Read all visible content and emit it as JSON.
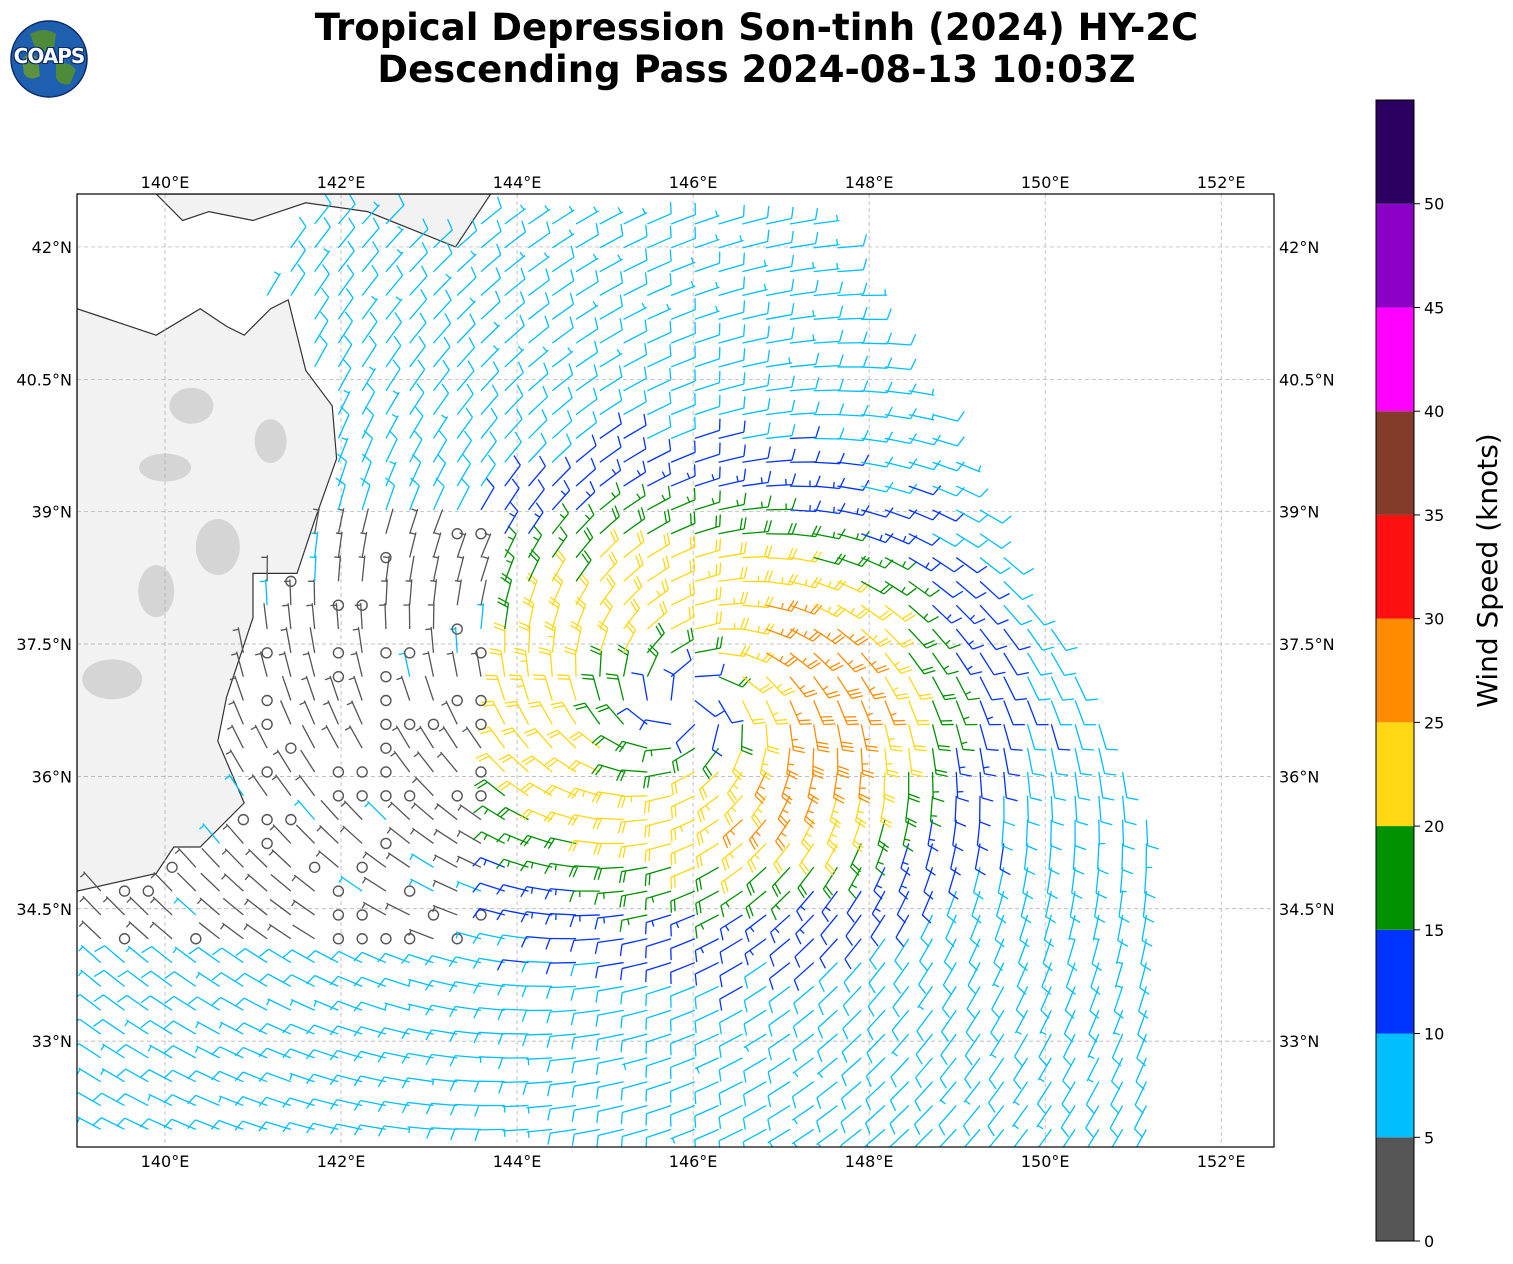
{
  "header": {
    "title_line1": "Tropical Depression Son-tinh (2024) HY-2C",
    "title_line2": "Descending Pass 2024-08-13 10:03Z",
    "logo_text": "COAPS"
  },
  "map": {
    "lon_range": [
      139,
      152.6
    ],
    "lat_range": [
      31.8,
      42.6
    ],
    "lon_ticks": [
      "140°E",
      "142°E",
      "144°E",
      "146°E",
      "148°E",
      "150°E",
      "152°E"
    ],
    "lat_ticks": [
      "42°N",
      "40.5°N",
      "39°N",
      "37.5°N",
      "36°N",
      "34.5°N",
      "33°N"
    ],
    "storm_center": {
      "lon": 145.9,
      "lat": 36.8
    }
  },
  "colorbar": {
    "label": "Wind Speed (knots)",
    "tick_labels": [
      "0",
      "5",
      "10",
      "15",
      "20",
      "25",
      "30",
      "35",
      "40",
      "45",
      "50"
    ],
    "bins": [
      {
        "min": 0,
        "max": 5,
        "color": "#555555"
      },
      {
        "min": 5,
        "max": 10,
        "color": "#00bfff"
      },
      {
        "min": 10,
        "max": 15,
        "color": "#0033ff"
      },
      {
        "min": 15,
        "max": 20,
        "color": "#009100"
      },
      {
        "min": 20,
        "max": 25,
        "color": "#ffd712"
      },
      {
        "min": 25,
        "max": 30,
        "color": "#ff8c00"
      },
      {
        "min": 30,
        "max": 35,
        "color": "#ff1010"
      },
      {
        "min": 35,
        "max": 40,
        "color": "#833c2a"
      },
      {
        "min": 40,
        "max": 45,
        "color": "#ff00ff"
      },
      {
        "min": 45,
        "max": 50,
        "color": "#8a00c4"
      },
      {
        "min": 50,
        "max": 55,
        "color": "#2b0061"
      }
    ]
  }
}
